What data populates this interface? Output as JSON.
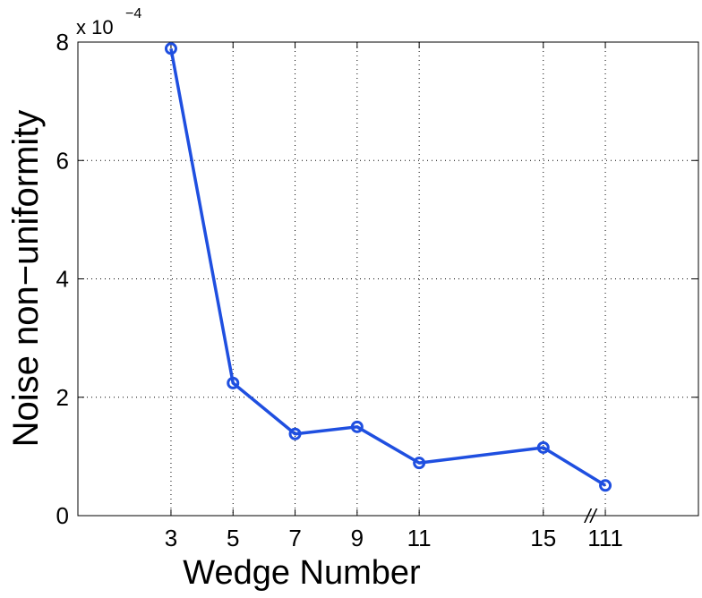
{
  "chart_data": {
    "type": "line",
    "xlabel": "Wedge Number",
    "ylabel": "Noise non−uniformity",
    "y_multiplier": "x 10",
    "y_exponent": "−4",
    "x_break_label": "//",
    "x": [
      3,
      5,
      7,
      9,
      11,
      15,
      111
    ],
    "series": [
      {
        "name": "Noise non-uniformity",
        "color": "#1f4fe0",
        "values": [
          0.000789,
          0.000224,
          0.000138,
          0.00015,
          8.9e-05,
          0.000115,
          5.1e-05
        ]
      }
    ],
    "xlim": [
      0,
      114
    ],
    "xticks": [
      3,
      5,
      7,
      9,
      11,
      15,
      111
    ],
    "ylim": [
      0,
      0.0008
    ],
    "yticks": [
      {
        "value": 0,
        "label": "0"
      },
      {
        "value": 0.0002,
        "label": "2"
      },
      {
        "value": 0.0004,
        "label": "4"
      },
      {
        "value": 0.0006,
        "label": "6"
      },
      {
        "value": 0.0008,
        "label": "8"
      }
    ],
    "grid": true,
    "marker": "circle"
  }
}
